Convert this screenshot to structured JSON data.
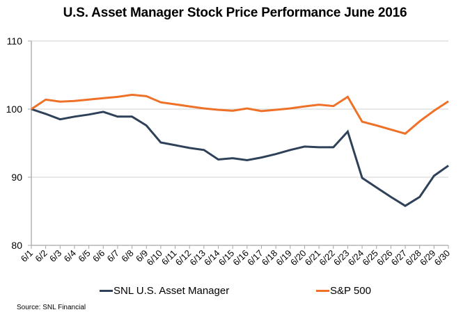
{
  "chart_data": {
    "type": "line",
    "title": "U.S. Asset Manager Stock Price Performance June 2016",
    "xlabel": "",
    "ylabel": "",
    "ylim": [
      80,
      110
    ],
    "yticks": [
      80,
      90,
      100,
      110
    ],
    "grid": "horizontal",
    "legend_position": "bottom",
    "categories": [
      "6/1",
      "6/2",
      "6/3",
      "6/4",
      "6/5",
      "6/6",
      "6/7",
      "6/8",
      "6/9",
      "6/10",
      "6/11",
      "6/12",
      "6/13",
      "6/14",
      "6/15",
      "6/16",
      "6/17",
      "6/18",
      "6/19",
      "6/20",
      "6/21",
      "6/22",
      "6/23",
      "6/24",
      "6/25",
      "6/26",
      "6/27",
      "6/28",
      "6/29",
      "6/30"
    ],
    "series": [
      {
        "name": "SNL U.S. Asset Manager",
        "color": "#2E4159",
        "values": [
          100,
          99.3,
          98.5,
          98.9,
          99.2,
          99.6,
          98.9,
          98.9,
          97.6,
          95.1,
          94.7,
          94.3,
          94.0,
          92.6,
          92.8,
          92.5,
          92.9,
          93.4,
          94.0,
          94.5,
          94.4,
          94.4,
          96.7,
          89.9,
          88.5,
          87.1,
          85.8,
          87.1,
          90.2,
          91.7
        ]
      },
      {
        "name": "S&P 500",
        "color": "#EE7127",
        "values": [
          100,
          101.4,
          101.1,
          101.2,
          101.4,
          101.6,
          101.8,
          102.1,
          101.9,
          101.0,
          100.7,
          100.4,
          100.1,
          99.9,
          99.75,
          100.1,
          99.7,
          99.9,
          100.1,
          100.4,
          100.65,
          100.45,
          101.8,
          98.15,
          97.6,
          97.0,
          96.4,
          98.2,
          99.75,
          101.15
        ]
      }
    ],
    "source": "Source: SNL Financial"
  },
  "colors": {
    "gridline": "#D9D9D9",
    "axis": "#A6A6A6"
  }
}
